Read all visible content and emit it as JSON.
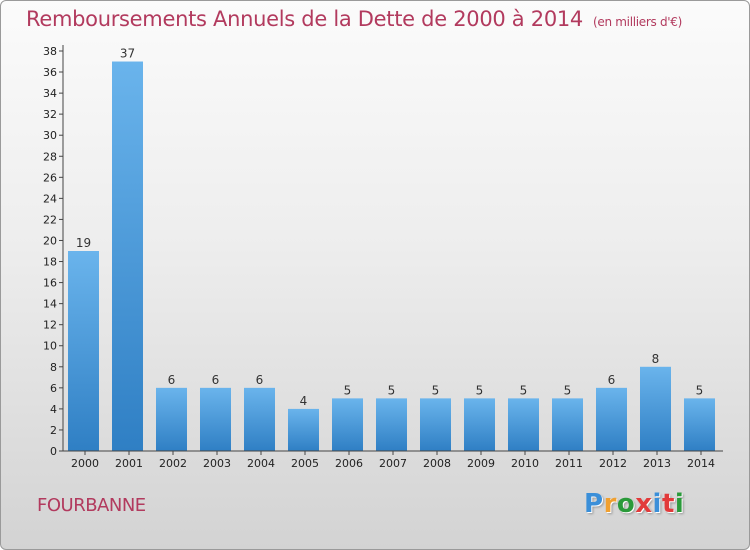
{
  "header": {
    "title": "Remboursements Annuels de la Dette de 2000 à 2014",
    "unit": "(en milliers d'€)"
  },
  "commune": "FOURBANNE",
  "logo": {
    "letters": [
      "P",
      "r",
      "o",
      "x",
      "i",
      "t",
      "i"
    ],
    "colors": [
      "#3a8fd9",
      "#f0a030",
      "#2a9a3a",
      "#e23a3a",
      "#3a8fd9",
      "#e23a3a",
      "#2a9a3a"
    ]
  },
  "colors": {
    "bar_light": "#6ab4ec",
    "bar_dark": "#2f7fc4",
    "axis": "#444444"
  },
  "chart_data": {
    "type": "bar",
    "title": "Remboursements Annuels de la Dette de 2000 à 2014",
    "categories": [
      "2000",
      "2001",
      "2002",
      "2003",
      "2004",
      "2005",
      "2006",
      "2007",
      "2008",
      "2009",
      "2010",
      "2011",
      "2012",
      "2013",
      "2014"
    ],
    "values": [
      19,
      37,
      6,
      6,
      6,
      4,
      5,
      5,
      5,
      5,
      5,
      5,
      6,
      8,
      5
    ],
    "ylim": [
      0,
      38
    ],
    "yticks": [
      0,
      2,
      4,
      6,
      8,
      10,
      12,
      14,
      16,
      18,
      20,
      22,
      24,
      26,
      28,
      30,
      32,
      34,
      36,
      38
    ],
    "grid": false,
    "legend": "none"
  }
}
